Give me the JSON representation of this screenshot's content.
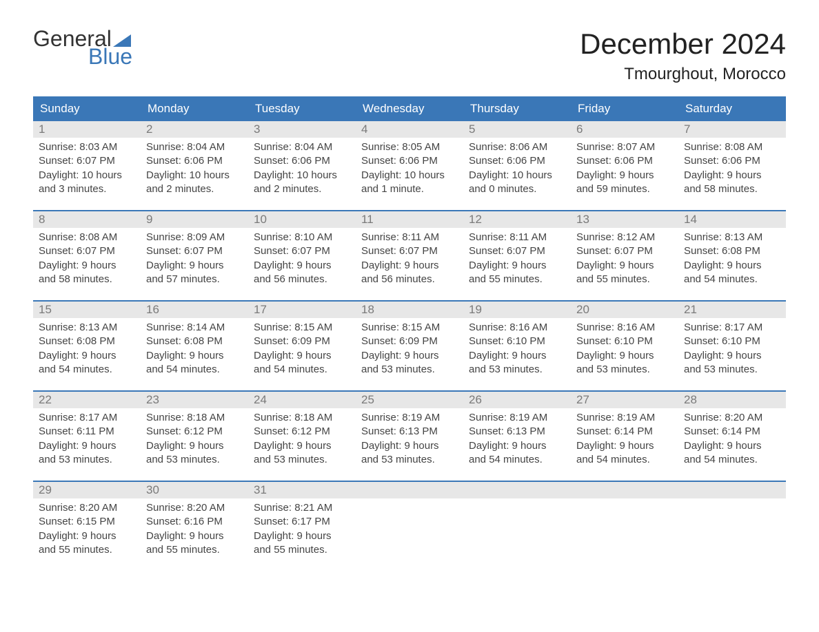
{
  "logo": {
    "word1": "General",
    "word2": "Blue",
    "icon_color": "#3a77b7"
  },
  "title": {
    "month": "December 2024",
    "location": "Tmourghout, Morocco"
  },
  "colors": {
    "header_bg": "#3a77b7",
    "header_text": "#ffffff",
    "daynum_bg": "#e7e7e7",
    "daynum_text": "#7a7a7a",
    "body_text": "#444444",
    "week_border": "#3a77b7",
    "page_bg": "#ffffff"
  },
  "typography": {
    "title_fontsize": 42,
    "location_fontsize": 24,
    "dayhead_fontsize": 17,
    "cell_fontsize": 15,
    "font_family": "Arial"
  },
  "day_names": [
    "Sunday",
    "Monday",
    "Tuesday",
    "Wednesday",
    "Thursday",
    "Friday",
    "Saturday"
  ],
  "weeks": [
    [
      {
        "n": "1",
        "sunrise": "Sunrise: 8:03 AM",
        "sunset": "Sunset: 6:07 PM",
        "day1": "Daylight: 10 hours",
        "day2": "and 3 minutes."
      },
      {
        "n": "2",
        "sunrise": "Sunrise: 8:04 AM",
        "sunset": "Sunset: 6:06 PM",
        "day1": "Daylight: 10 hours",
        "day2": "and 2 minutes."
      },
      {
        "n": "3",
        "sunrise": "Sunrise: 8:04 AM",
        "sunset": "Sunset: 6:06 PM",
        "day1": "Daylight: 10 hours",
        "day2": "and 2 minutes."
      },
      {
        "n": "4",
        "sunrise": "Sunrise: 8:05 AM",
        "sunset": "Sunset: 6:06 PM",
        "day1": "Daylight: 10 hours",
        "day2": "and 1 minute."
      },
      {
        "n": "5",
        "sunrise": "Sunrise: 8:06 AM",
        "sunset": "Sunset: 6:06 PM",
        "day1": "Daylight: 10 hours",
        "day2": "and 0 minutes."
      },
      {
        "n": "6",
        "sunrise": "Sunrise: 8:07 AM",
        "sunset": "Sunset: 6:06 PM",
        "day1": "Daylight: 9 hours",
        "day2": "and 59 minutes."
      },
      {
        "n": "7",
        "sunrise": "Sunrise: 8:08 AM",
        "sunset": "Sunset: 6:06 PM",
        "day1": "Daylight: 9 hours",
        "day2": "and 58 minutes."
      }
    ],
    [
      {
        "n": "8",
        "sunrise": "Sunrise: 8:08 AM",
        "sunset": "Sunset: 6:07 PM",
        "day1": "Daylight: 9 hours",
        "day2": "and 58 minutes."
      },
      {
        "n": "9",
        "sunrise": "Sunrise: 8:09 AM",
        "sunset": "Sunset: 6:07 PM",
        "day1": "Daylight: 9 hours",
        "day2": "and 57 minutes."
      },
      {
        "n": "10",
        "sunrise": "Sunrise: 8:10 AM",
        "sunset": "Sunset: 6:07 PM",
        "day1": "Daylight: 9 hours",
        "day2": "and 56 minutes."
      },
      {
        "n": "11",
        "sunrise": "Sunrise: 8:11 AM",
        "sunset": "Sunset: 6:07 PM",
        "day1": "Daylight: 9 hours",
        "day2": "and 56 minutes."
      },
      {
        "n": "12",
        "sunrise": "Sunrise: 8:11 AM",
        "sunset": "Sunset: 6:07 PM",
        "day1": "Daylight: 9 hours",
        "day2": "and 55 minutes."
      },
      {
        "n": "13",
        "sunrise": "Sunrise: 8:12 AM",
        "sunset": "Sunset: 6:07 PM",
        "day1": "Daylight: 9 hours",
        "day2": "and 55 minutes."
      },
      {
        "n": "14",
        "sunrise": "Sunrise: 8:13 AM",
        "sunset": "Sunset: 6:08 PM",
        "day1": "Daylight: 9 hours",
        "day2": "and 54 minutes."
      }
    ],
    [
      {
        "n": "15",
        "sunrise": "Sunrise: 8:13 AM",
        "sunset": "Sunset: 6:08 PM",
        "day1": "Daylight: 9 hours",
        "day2": "and 54 minutes."
      },
      {
        "n": "16",
        "sunrise": "Sunrise: 8:14 AM",
        "sunset": "Sunset: 6:08 PM",
        "day1": "Daylight: 9 hours",
        "day2": "and 54 minutes."
      },
      {
        "n": "17",
        "sunrise": "Sunrise: 8:15 AM",
        "sunset": "Sunset: 6:09 PM",
        "day1": "Daylight: 9 hours",
        "day2": "and 54 minutes."
      },
      {
        "n": "18",
        "sunrise": "Sunrise: 8:15 AM",
        "sunset": "Sunset: 6:09 PM",
        "day1": "Daylight: 9 hours",
        "day2": "and 53 minutes."
      },
      {
        "n": "19",
        "sunrise": "Sunrise: 8:16 AM",
        "sunset": "Sunset: 6:10 PM",
        "day1": "Daylight: 9 hours",
        "day2": "and 53 minutes."
      },
      {
        "n": "20",
        "sunrise": "Sunrise: 8:16 AM",
        "sunset": "Sunset: 6:10 PM",
        "day1": "Daylight: 9 hours",
        "day2": "and 53 minutes."
      },
      {
        "n": "21",
        "sunrise": "Sunrise: 8:17 AM",
        "sunset": "Sunset: 6:10 PM",
        "day1": "Daylight: 9 hours",
        "day2": "and 53 minutes."
      }
    ],
    [
      {
        "n": "22",
        "sunrise": "Sunrise: 8:17 AM",
        "sunset": "Sunset: 6:11 PM",
        "day1": "Daylight: 9 hours",
        "day2": "and 53 minutes."
      },
      {
        "n": "23",
        "sunrise": "Sunrise: 8:18 AM",
        "sunset": "Sunset: 6:12 PM",
        "day1": "Daylight: 9 hours",
        "day2": "and 53 minutes."
      },
      {
        "n": "24",
        "sunrise": "Sunrise: 8:18 AM",
        "sunset": "Sunset: 6:12 PM",
        "day1": "Daylight: 9 hours",
        "day2": "and 53 minutes."
      },
      {
        "n": "25",
        "sunrise": "Sunrise: 8:19 AM",
        "sunset": "Sunset: 6:13 PM",
        "day1": "Daylight: 9 hours",
        "day2": "and 53 minutes."
      },
      {
        "n": "26",
        "sunrise": "Sunrise: 8:19 AM",
        "sunset": "Sunset: 6:13 PM",
        "day1": "Daylight: 9 hours",
        "day2": "and 54 minutes."
      },
      {
        "n": "27",
        "sunrise": "Sunrise: 8:19 AM",
        "sunset": "Sunset: 6:14 PM",
        "day1": "Daylight: 9 hours",
        "day2": "and 54 minutes."
      },
      {
        "n": "28",
        "sunrise": "Sunrise: 8:20 AM",
        "sunset": "Sunset: 6:14 PM",
        "day1": "Daylight: 9 hours",
        "day2": "and 54 minutes."
      }
    ],
    [
      {
        "n": "29",
        "sunrise": "Sunrise: 8:20 AM",
        "sunset": "Sunset: 6:15 PM",
        "day1": "Daylight: 9 hours",
        "day2": "and 55 minutes."
      },
      {
        "n": "30",
        "sunrise": "Sunrise: 8:20 AM",
        "sunset": "Sunset: 6:16 PM",
        "day1": "Daylight: 9 hours",
        "day2": "and 55 minutes."
      },
      {
        "n": "31",
        "sunrise": "Sunrise: 8:21 AM",
        "sunset": "Sunset: 6:17 PM",
        "day1": "Daylight: 9 hours",
        "day2": "and 55 minutes."
      },
      {
        "empty": true
      },
      {
        "empty": true
      },
      {
        "empty": true
      },
      {
        "empty": true
      }
    ]
  ]
}
